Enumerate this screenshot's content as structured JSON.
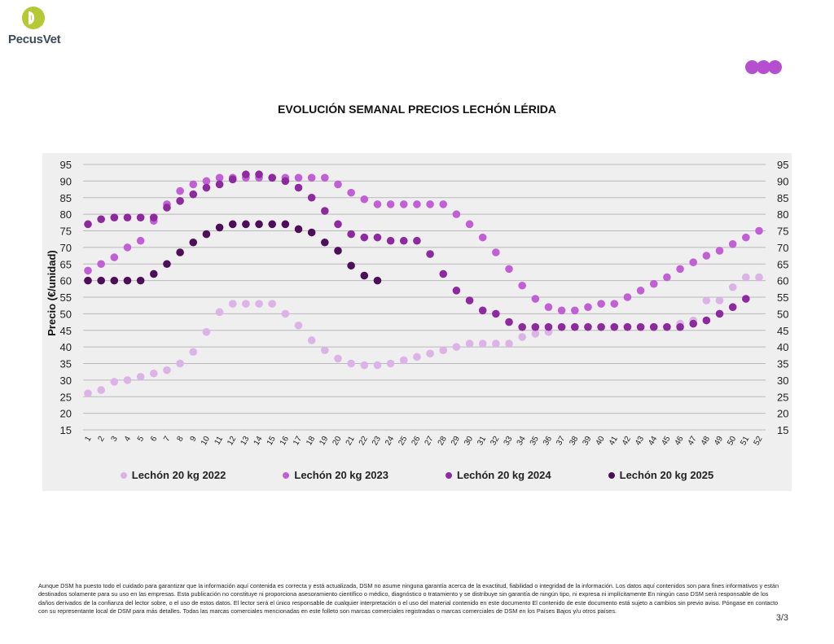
{
  "header": {
    "logo_text": "PecusVet",
    "brand_dots_count": 3,
    "brand_color": "#b44fd0"
  },
  "title": "EVOLUCIÓN SEMANAL PRECIOS LECHÓN LÉRIDA",
  "chart_data": {
    "type": "scatter",
    "title": "EVOLUCIÓN SEMANAL PRECIOS LECHÓN LÉRIDA",
    "xlabel": "",
    "ylabel": "Precio (€/unidad)",
    "ylim": [
      15,
      95
    ],
    "y_ticks": [
      15,
      20,
      25,
      30,
      35,
      40,
      45,
      50,
      55,
      60,
      65,
      70,
      75,
      80,
      85,
      90,
      95
    ],
    "x": [
      1,
      2,
      3,
      4,
      5,
      6,
      7,
      8,
      9,
      10,
      11,
      12,
      13,
      14,
      15,
      16,
      17,
      18,
      19,
      20,
      21,
      22,
      23,
      24,
      25,
      26,
      27,
      28,
      29,
      30,
      31,
      32,
      33,
      34,
      35,
      36,
      37,
      38,
      39,
      40,
      41,
      42,
      43,
      44,
      45,
      46,
      47,
      48,
      49,
      50,
      51,
      52
    ],
    "grid": true,
    "secondary_y_axis": true,
    "legend_position": "bottom",
    "series": [
      {
        "name": "Lechón 20 kg 2022",
        "color": "#dcb3e6",
        "values": [
          26,
          27,
          29.5,
          30,
          31,
          32,
          33,
          35,
          38.5,
          44.5,
          50.5,
          53,
          53,
          53,
          53,
          50,
          46.5,
          42,
          39,
          36.5,
          35,
          34.5,
          34.5,
          35,
          36,
          37,
          38,
          39,
          40,
          41,
          41,
          41,
          41,
          43,
          44,
          44.5,
          46,
          46,
          46,
          46,
          46,
          46,
          46,
          46,
          46,
          47,
          48,
          54,
          54,
          58,
          61,
          61
        ]
      },
      {
        "name": "Lechón 20 kg 2023",
        "color": "#c060d4",
        "values": [
          63,
          65,
          67,
          70,
          72,
          78,
          83,
          87,
          89,
          90,
          91,
          91,
          91,
          91,
          91,
          91,
          91,
          91,
          91,
          89,
          86.5,
          84.5,
          83,
          83,
          83,
          83,
          83,
          83,
          80,
          77,
          73,
          68.5,
          63.5,
          58.5,
          54.5,
          52,
          51,
          51,
          52,
          53,
          53,
          55,
          57,
          59,
          61,
          63.5,
          65.5,
          67.5,
          69,
          71,
          73,
          75
        ]
      },
      {
        "name": "Lechón 20 kg 2024",
        "color": "#8c2a9e",
        "values": [
          77,
          78.5,
          79,
          79,
          79,
          79,
          82,
          84,
          86,
          88,
          89,
          90.5,
          92,
          92,
          91,
          90,
          88,
          85,
          81,
          77,
          74,
          73,
          73,
          72,
          72,
          72,
          68,
          62,
          57,
          54,
          51,
          50,
          47.5,
          46,
          46,
          46,
          46,
          46,
          46,
          46,
          46,
          46,
          46,
          46,
          46,
          46,
          47,
          48,
          50,
          52,
          54.5,
          null
        ]
      },
      {
        "name": "Lechón 20 kg 2025",
        "color": "#4e0f59",
        "values": [
          60,
          60,
          60,
          60,
          60,
          62,
          65,
          68.5,
          71.5,
          74,
          76,
          77,
          77,
          77,
          77,
          77,
          75.5,
          74.5,
          71.5,
          69,
          64.5,
          61.5,
          60,
          null,
          null,
          null,
          null,
          null,
          null,
          null,
          null,
          null,
          null,
          null,
          null,
          null,
          null,
          null,
          null,
          null,
          null,
          null,
          null,
          null,
          null,
          null,
          null,
          null,
          null,
          null,
          null,
          null
        ]
      }
    ]
  },
  "legend": [
    {
      "label": "Lechón 20 kg 2022",
      "color": "#dcb3e6"
    },
    {
      "label": "Lechón 20 kg 2023",
      "color": "#c060d4"
    },
    {
      "label": "Lechón 20 kg 2024",
      "color": "#8c2a9e"
    },
    {
      "label": "Lechón 20 kg 2025",
      "color": "#4e0f59"
    }
  ],
  "footer": {
    "disclaimer": "Aunque DSM ha puesto todo el cuidado para garantizar que la información aquí contenida es correcta y está actualizada, DSM no asume ninguna garantía acerca de la exactitud, fiabilidad o integridad de la información. Los datos aquí contenidos son para fines informativos y están destinados solamente para su uso en las empresas. Esta publicación no constituye ni proporciona asesoramiento científico o médico, diagnóstico o tratamiento y se distribuye sin garantía de ningún tipo, ni expresa ni implícitamente En ningún caso DSM será responsable de los daños derivados de la confianza del lector sobre, o el uso de estos datos. El lector será el único responsable de cualquier interpretación o el uso del material contenido en este documento El contenido de este documento está sujeto a cambios sin previo aviso. Póngase en contacto con su representante local de DSM para más detalles. Todas las marcas comerciales mencionadas en este folleto son marcas comerciales registradas o marcas comerciales de DSM en los Países Bajos y/u otros países.",
    "page": "3/3"
  }
}
